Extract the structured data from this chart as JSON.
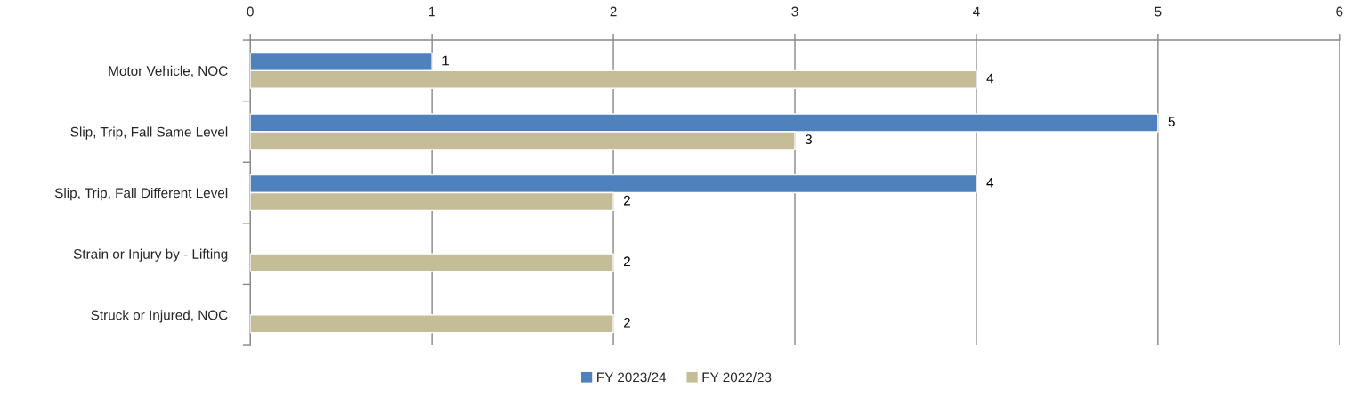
{
  "chart_data": {
    "type": "bar",
    "orientation": "horizontal",
    "categories": [
      "Motor Vehicle, NOC",
      "Slip, Trip, Fall Same Level",
      "Slip, Trip, Fall Different Level",
      "Strain or Injury by - Lifting",
      "Struck or Injured, NOC"
    ],
    "series": [
      {
        "name": "FY 2023/24",
        "color": "#4f81bd",
        "values": [
          1,
          5,
          4,
          null,
          null
        ]
      },
      {
        "name": "FY 2022/23",
        "color": "#c4bd97",
        "values": [
          4,
          3,
          2,
          2,
          2
        ]
      }
    ],
    "xlim": [
      0,
      6
    ],
    "xticks": [
      0,
      1,
      2,
      3,
      4,
      5,
      6
    ],
    "grid": "x",
    "legend": "bottom",
    "data_labels": true
  }
}
